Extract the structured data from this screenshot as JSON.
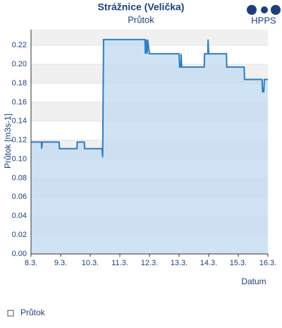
{
  "chart_data": {
    "type": "area",
    "title": "Strážnice (Velička)",
    "subtitle": "Průtok",
    "source": "HPPS",
    "y_label": "Průtok [m3s-1]",
    "x_label": "Datum",
    "xlim": [
      8,
      16
    ],
    "ylim": [
      0,
      0.2365
    ],
    "xticks": [
      {
        "value": 8,
        "label": "8.3."
      },
      {
        "value": 9,
        "label": "9.3."
      },
      {
        "value": 10,
        "label": "10.3."
      },
      {
        "value": 11,
        "label": "11.3."
      },
      {
        "value": 12,
        "label": "12.3."
      },
      {
        "value": 13,
        "label": "13.3."
      },
      {
        "value": 14,
        "label": "14.3."
      },
      {
        "value": 15,
        "label": "15.3."
      },
      {
        "value": 16,
        "label": "16.3."
      }
    ],
    "yticks": [
      {
        "value": 0,
        "label": "0.00"
      },
      {
        "value": 0.02,
        "label": "0.02"
      },
      {
        "value": 0.04,
        "label": "0.04"
      },
      {
        "value": 0.06,
        "label": "0.06"
      },
      {
        "value": 0.08,
        "label": "0.08"
      },
      {
        "value": 0.1,
        "label": "0.10"
      },
      {
        "value": 0.12,
        "label": "0.12"
      },
      {
        "value": 0.14,
        "label": "0.14"
      },
      {
        "value": 0.16,
        "label": "0.16"
      },
      {
        "value": 0.18,
        "label": "0.18"
      },
      {
        "value": 0.2,
        "label": "0.20"
      },
      {
        "value": 0.22,
        "label": "0.22"
      }
    ],
    "alternate_bands": true,
    "series": [
      {
        "name": "Průtok",
        "color": "#2f7dc0",
        "fill": "#c4dcf2",
        "x": [
          8,
          8.35,
          8.36,
          8.38,
          8.95,
          8.96,
          9.55,
          9.56,
          9.8,
          9.81,
          10.4,
          10.42,
          10.45,
          11.85,
          11.86,
          11.88,
          11.92,
          11.94,
          12.0,
          13.0,
          13.02,
          13.06,
          13.07,
          13.09,
          13.85,
          13.86,
          13.97,
          13.98,
          14.0,
          14.6,
          14.61,
          15.2,
          15.21,
          15.8,
          15.82,
          15.86,
          15.88,
          16.0
        ],
        "values": [
          0.118,
          0.118,
          0.111,
          0.118,
          0.118,
          0.111,
          0.111,
          0.118,
          0.118,
          0.111,
          0.111,
          0.102,
          0.226,
          0.226,
          0.211,
          0.226,
          0.211,
          0.226,
          0.211,
          0.211,
          0.197,
          0.197,
          0.211,
          0.197,
          0.197,
          0.211,
          0.211,
          0.226,
          0.211,
          0.211,
          0.197,
          0.197,
          0.184,
          0.184,
          0.171,
          0.171,
          0.184,
          0.184
        ]
      }
    ]
  }
}
